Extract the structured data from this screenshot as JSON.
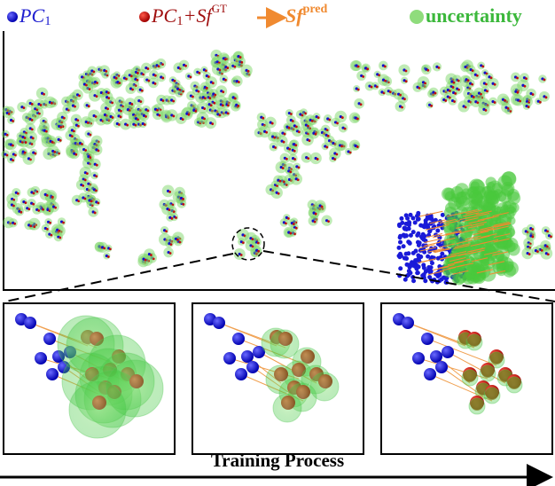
{
  "legend": [
    {
      "text": "PC",
      "sub": "1"
    },
    {
      "text": "PC",
      "sub": "1",
      "plus": "+Sf",
      "sup": "GT"
    },
    {
      "text": "Sf",
      "sup": "pred"
    },
    {
      "text": "uncertainty"
    }
  ],
  "caption": "Training Process"
}
